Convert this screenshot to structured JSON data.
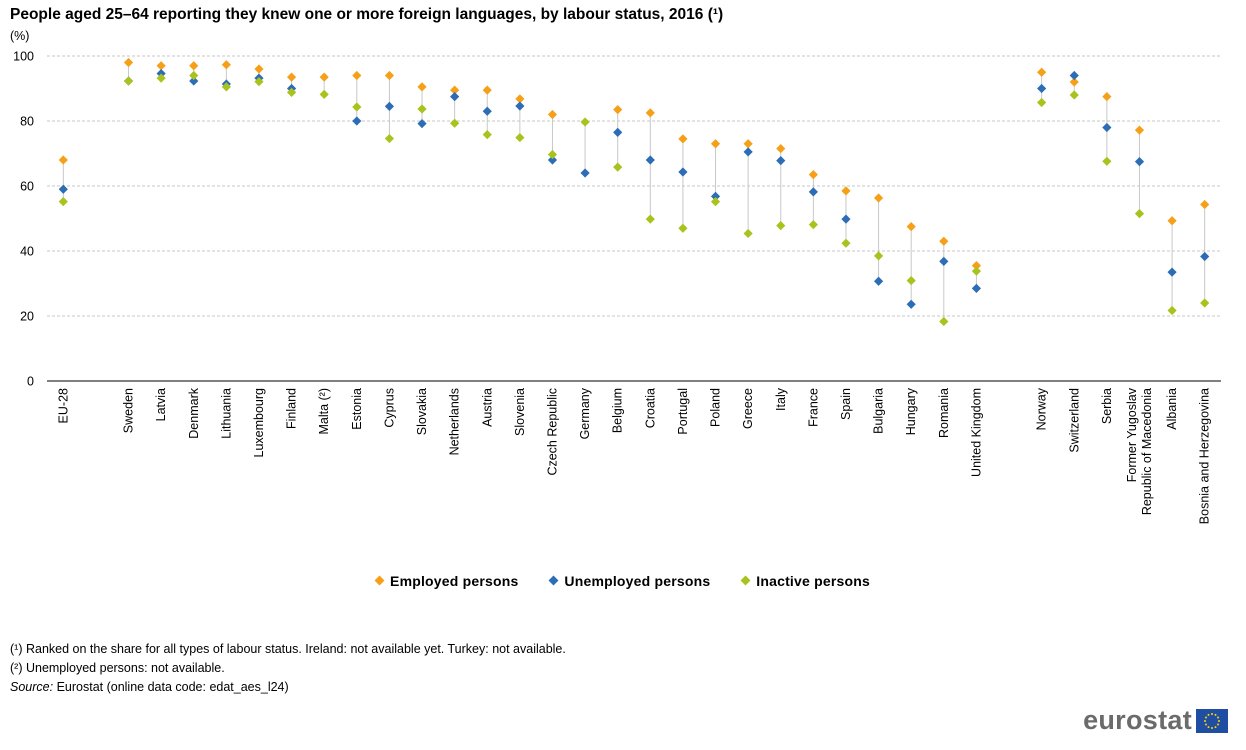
{
  "title": "People aged 25–64 reporting they knew one or more foreign languages, by labour status, 2016 (¹)",
  "y_unit": "(%)",
  "legend": [
    {
      "label": "Employed persons",
      "color": "#F6A01A"
    },
    {
      "label": "Unemployed persons",
      "color": "#2C6DB5"
    },
    {
      "label": "Inactive persons",
      "color": "#A9C31E"
    }
  ],
  "footnotes": {
    "note1": "(¹) Ranked on the share for all types of labour status. Ireland: not available yet. Turkey: not available.",
    "note2": "(²) Unemployed persons: not available.",
    "source_label": "Source:",
    "source_text": " Eurostat (online data code: edat_aes_l24)"
  },
  "brand": {
    "name": "eurostat",
    "flag_icon": "eu-flag-icon"
  },
  "chart_data": {
    "type": "scatter",
    "title": "People aged 25–64 reporting they knew one or more foreign languages, by labour status, 2016 (¹)",
    "ylabel": "(%)",
    "ylim": [
      0,
      100
    ],
    "yticks": [
      0,
      20,
      40,
      60,
      80,
      100
    ],
    "grid": true,
    "legend_position": "bottom",
    "categories": [
      "EU-28",
      "Sweden",
      "Latvia",
      "Denmark",
      "Lithuania",
      "Luxembourg",
      "Finland",
      "Malta (²)",
      "Estonia",
      "Cyprus",
      "Slovakia",
      "Netherlands",
      "Austria",
      "Slovenia",
      "Czech Republic",
      "Germany",
      "Belgium",
      "Croatia",
      "Portugal",
      "Poland",
      "Greece",
      "Italy",
      "France",
      "Spain",
      "Bulgaria",
      "Hungary",
      "Romania",
      "United Kingdom",
      "Norway",
      "Switzerland",
      "Serbia",
      "Former Yugoslav Republic of Macedonia",
      "Albania",
      "Bosnia and Herzegovina"
    ],
    "category_groups": [
      1,
      27,
      6
    ],
    "series": [
      {
        "name": "Employed persons",
        "color": "#F6A01A",
        "values": [
          68,
          98,
          97,
          97,
          97.3,
          96,
          93.5,
          93.5,
          94,
          94,
          90.5,
          89.5,
          89.5,
          86.8,
          82,
          null,
          83.5,
          82.5,
          74.5,
          73,
          73,
          71.5,
          63.5,
          58.5,
          56.3,
          47.5,
          43,
          35.5,
          95,
          92,
          87.5,
          77.2,
          49.3,
          54.3
        ]
      },
      {
        "name": "Unemployed persons",
        "color": "#2C6DB5",
        "values": [
          59,
          92.3,
          94.6,
          92.3,
          91.4,
          93.2,
          90,
          null,
          80,
          84.5,
          79.2,
          87.5,
          83,
          84.6,
          68,
          64,
          76.5,
          68,
          64.3,
          56.8,
          70.5,
          67.8,
          58.2,
          49.8,
          30.7,
          23.6,
          36.8,
          28.5,
          90,
          94,
          78,
          67.5,
          33.5,
          38.3
        ]
      },
      {
        "name": "Inactive persons",
        "color": "#A9C31E",
        "values": [
          55.2,
          92.3,
          93.2,
          94,
          90.5,
          92.1,
          88.8,
          88.2,
          84.3,
          74.6,
          83.7,
          79.3,
          75.8,
          74.9,
          69.7,
          79.7,
          65.8,
          49.8,
          47,
          55.2,
          45.4,
          47.8,
          48.1,
          42.4,
          38.5,
          30.9,
          18.3,
          33.8,
          85.7,
          88,
          67.6,
          51.5,
          21.7,
          24
        ]
      }
    ]
  }
}
